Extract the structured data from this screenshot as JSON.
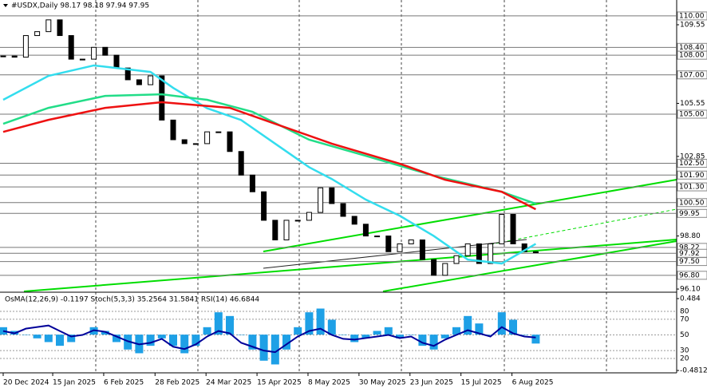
{
  "chart_data": {
    "type": "candlestick",
    "title": "#USDX,Daily  98.17 98.18 97.94 97.95",
    "ylim": [
      95.98,
      110.81
    ],
    "yticks": [
      109.55,
      105.55,
      102.85,
      {
        "value": 98.8,
        "label": "98.80"
      },
      {
        "value": 96.1,
        "label": "96.10"
      }
    ],
    "levels": [
      {
        "value": 110,
        "label": "110.00"
      },
      {
        "value": 108.4,
        "label": "108.40"
      },
      {
        "value": 108,
        "label": "108.00"
      },
      {
        "value": 107,
        "label": "107.00"
      },
      {
        "value": 105,
        "label": "105.00"
      },
      {
        "value": 102.5,
        "label": "102.50"
      },
      {
        "value": 101.9,
        "label": "101.90"
      },
      {
        "value": 101.3,
        "label": "101.30"
      },
      {
        "value": 100.5,
        "label": "100.50"
      },
      99.95,
      98.22,
      97.92,
      {
        "value": 97.5,
        "label": "97.50"
      },
      {
        "value": 96.8,
        "label": "96.80"
      }
    ],
    "xticks": [
      {
        "value": 0,
        "label": "20 Dec 2024"
      },
      {
        "value": 4.37,
        "label": "15 Jan 2025"
      },
      {
        "value": 8.87,
        "label": "6 Feb 2025"
      },
      {
        "value": 13.4,
        "label": "28 Feb 2025"
      },
      {
        "value": 17.9,
        "label": "24 Mar 2025"
      },
      {
        "value": 22.4,
        "label": "15 Apr 2025"
      },
      {
        "value": 26.9,
        "label": "8 May 2025"
      },
      {
        "value": 31.4,
        "label": "30 May 2025"
      },
      {
        "value": 35.9,
        "label": "23 Jun 2025"
      },
      {
        "value": 40.4,
        "label": "15 Jul 2025"
      },
      {
        "value": 44.9,
        "label": "6 Aug 2025"
      }
    ],
    "close": [
      107.96,
      107.9,
      109.0,
      109.2,
      109.8,
      109.0,
      107.8,
      107.8,
      108.4,
      108.0,
      107.35,
      106.75,
      106.5,
      106.95,
      104.7,
      103.7,
      103.5,
      103.5,
      104.1,
      104.1,
      103.1,
      101.9,
      101.05,
      99.6,
      98.6,
      99.6,
      99.6,
      100.0,
      101.25,
      100.45,
      99.8,
      99.4,
      98.8,
      98.8,
      98.0,
      98.4,
      98.6,
      97.6,
      96.8,
      97.4,
      97.8,
      98.4,
      97.4,
      98.4,
      99.9,
      98.4,
      98.0,
      97.95
    ],
    "series": [
      {
        "color": "#33ddee",
        "x": [
          0,
          4,
          8,
          13,
          15,
          18,
          21,
          24,
          27,
          29,
          32,
          35,
          38,
          41,
          44,
          47
        ],
        "values": [
          105.73,
          106.95,
          107.48,
          107.15,
          106.34,
          105.3,
          104.7,
          103.5,
          102.3,
          101.7,
          100.65,
          99.83,
          98.8,
          97.6,
          97.4,
          98.4
        ]
      },
      {
        "color": "#22dd88",
        "x": [
          0,
          4,
          9,
          14,
          18,
          22,
          27,
          32,
          38,
          44,
          47
        ],
        "values": [
          104.51,
          105.32,
          105.93,
          106.01,
          105.73,
          105.12,
          103.7,
          102.88,
          101.87,
          101.05,
          100.44
        ]
      },
      {
        "color": "#ee1111",
        "x": [
          0,
          4,
          9,
          14,
          20,
          24,
          29,
          35,
          39,
          44,
          47
        ],
        "values": [
          104.1,
          104.71,
          105.32,
          105.61,
          105.32,
          104.51,
          103.5,
          102.48,
          101.66,
          101.05,
          100.16
        ]
      }
    ],
    "oscillator": {
      "title": "OsMA(12,26,9) -0.1197  Stoch(5,3,3) 35.2564 31.5841  RSI(14) 46.6844",
      "ylim": [
        -0.513,
        0.559
      ],
      "yticks": [
        0.484,
        -0.4812
      ],
      "y2lim": [
        1.7,
        103.4
      ],
      "y2ticks": [
        80,
        70,
        50,
        30,
        20
      ],
      "osma_color": "#1ea0e6",
      "osma": [
        0.1,
        0.05,
        0.0,
        -0.05,
        -0.1,
        -0.15,
        -0.1,
        0.0,
        0.1,
        0.05,
        -0.1,
        -0.2,
        -0.25,
        -0.15,
        -0.05,
        -0.15,
        -0.25,
        -0.15,
        0.1,
        0.3,
        0.25,
        0.0,
        -0.2,
        -0.35,
        -0.4,
        -0.2,
        0.1,
        0.3,
        0.35,
        0.2,
        0.0,
        -0.1,
        -0.05,
        0.05,
        0.1,
        -0.05,
        0.0,
        -0.15,
        -0.2,
        -0.05,
        0.1,
        0.25,
        0.15,
        0.0,
        0.3,
        0.2,
        0.0,
        -0.1197
      ],
      "rsi_color": "#000099",
      "rsi": [
        55,
        52,
        58,
        60,
        62,
        55,
        48,
        50,
        56,
        54,
        48,
        42,
        38,
        40,
        45,
        35,
        32,
        38,
        48,
        55,
        52,
        40,
        35,
        30,
        28,
        38,
        48,
        55,
        58,
        50,
        45,
        44,
        46,
        48,
        50,
        46,
        48,
        40,
        36,
        44,
        50,
        56,
        52,
        48,
        60,
        52,
        48,
        46.6844
      ]
    }
  }
}
